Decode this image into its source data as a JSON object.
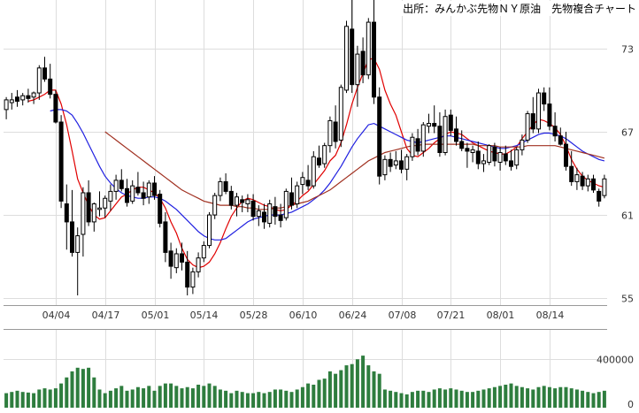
{
  "chart_data": {
    "type": "candlestick",
    "title": "出所：みんかぶ先物ＮＹ原油　先物複合チャート",
    "colors": {
      "candle": "#000000",
      "up_fill": "#ffffff",
      "down_fill": "#000000",
      "ma_short": "#e00000",
      "ma_mid": "#2020e0",
      "ma_long": "#a03020",
      "volume": "#2e7d3e",
      "grid": "#dddddd"
    },
    "price_axis": {
      "ylim": [
        54.5,
        76.5
      ],
      "ticks": [
        55,
        61,
        67,
        73
      ]
    },
    "volume_axis": {
      "ylim": [
        0,
        650000
      ],
      "ticks": [
        0,
        400000
      ]
    },
    "x_tick_labels": [
      "04/04",
      "04/17",
      "05/01",
      "05/14",
      "05/28",
      "06/10",
      "06/24",
      "07/08",
      "07/21",
      "08/01",
      "08/14"
    ],
    "x_tick_index": [
      9,
      18,
      27,
      36,
      45,
      54,
      63,
      72,
      81,
      90,
      99
    ],
    "candles": [
      [
        68.6,
        69.5,
        67.9,
        69.3
      ],
      [
        69.1,
        69.8,
        68.6,
        69.3
      ],
      [
        69.5,
        70.0,
        68.8,
        69.2
      ],
      [
        69.3,
        69.8,
        68.9,
        69.6
      ],
      [
        69.6,
        70.1,
        69.1,
        69.4
      ],
      [
        69.5,
        69.9,
        69.0,
        69.8
      ],
      [
        69.8,
        71.8,
        69.3,
        71.6
      ],
      [
        71.6,
        72.4,
        70.6,
        70.8
      ],
      [
        70.8,
        71.9,
        69.4,
        69.7
      ],
      [
        69.7,
        70.0,
        67.6,
        67.7
      ],
      [
        67.7,
        68.2,
        61.5,
        62.0
      ],
      [
        61.8,
        63.2,
        58.5,
        60.5
      ],
      [
        60.5,
        62.8,
        58.0,
        58.3
      ],
      [
        58.3,
        60.1,
        55.2,
        59.5
      ],
      [
        59.6,
        63.0,
        58.0,
        62.6
      ],
      [
        62.6,
        63.5,
        60.2,
        60.5
      ],
      [
        60.5,
        61.9,
        59.8,
        61.8
      ],
      [
        61.4,
        62.7,
        60.9,
        61.5
      ],
      [
        61.5,
        62.4,
        60.8,
        62.2
      ],
      [
        62.0,
        63.2,
        61.3,
        62.7
      ],
      [
        62.7,
        63.9,
        62.1,
        63.5
      ],
      [
        63.5,
        64.3,
        62.7,
        62.9
      ],
      [
        62.9,
        63.6,
        61.6,
        61.9
      ],
      [
        62.0,
        63.5,
        61.8,
        63.1
      ],
      [
        63.0,
        64.1,
        62.4,
        62.6
      ],
      [
        62.6,
        63.4,
        61.7,
        62.2
      ],
      [
        62.3,
        63.5,
        61.8,
        63.3
      ],
      [
        63.3,
        63.8,
        62.1,
        62.4
      ],
      [
        62.5,
        62.8,
        60.1,
        60.4
      ],
      [
        60.5,
        61.2,
        57.6,
        58.3
      ],
      [
        58.4,
        59.0,
        56.4,
        57.3
      ],
      [
        57.2,
        58.6,
        56.8,
        58.2
      ],
      [
        58.2,
        59.0,
        57.0,
        57.6
      ],
      [
        57.6,
        58.4,
        55.2,
        55.8
      ],
      [
        55.8,
        57.2,
        55.3,
        56.9
      ],
      [
        56.9,
        58.3,
        56.5,
        57.9
      ],
      [
        57.9,
        59.1,
        57.6,
        58.8
      ],
      [
        58.8,
        61.2,
        58.6,
        61.0
      ],
      [
        61.0,
        62.6,
        60.7,
        62.4
      ],
      [
        62.4,
        63.7,
        62.0,
        63.4
      ],
      [
        63.4,
        64.0,
        62.5,
        62.7
      ],
      [
        62.7,
        63.1,
        61.4,
        61.7
      ],
      [
        61.7,
        62.6,
        60.9,
        62.3
      ],
      [
        62.1,
        62.4,
        61.2,
        61.9
      ],
      [
        61.8,
        62.5,
        61.2,
        62.1
      ],
      [
        62.0,
        62.5,
        60.6,
        60.9
      ],
      [
        60.9,
        61.7,
        60.2,
        61.3
      ],
      [
        61.2,
        61.8,
        60.0,
        60.5
      ],
      [
        60.4,
        62.1,
        60.1,
        61.8
      ],
      [
        61.6,
        62.3,
        60.3,
        60.9
      ],
      [
        61.0,
        61.8,
        60.1,
        60.6
      ],
      [
        60.8,
        62.9,
        60.6,
        62.7
      ],
      [
        62.6,
        63.7,
        61.4,
        61.7
      ],
      [
        61.8,
        63.4,
        61.5,
        63.1
      ],
      [
        63.2,
        64.1,
        62.5,
        63.7
      ],
      [
        63.5,
        64.6,
        62.8,
        63.1
      ],
      [
        63.1,
        65.6,
        62.9,
        65.2
      ],
      [
        65.1,
        66.0,
        64.4,
        64.6
      ],
      [
        64.7,
        66.2,
        64.4,
        66.0
      ],
      [
        66.0,
        68.1,
        65.5,
        67.8
      ],
      [
        67.7,
        68.9,
        65.8,
        66.3
      ],
      [
        66.4,
        70.4,
        65.9,
        70.2
      ],
      [
        70.0,
        75.0,
        69.8,
        74.6
      ],
      [
        74.4,
        77.0,
        69.8,
        70.4
      ],
      [
        70.4,
        73.2,
        68.8,
        72.6
      ],
      [
        72.8,
        73.8,
        70.5,
        71.1
      ],
      [
        71.1,
        75.2,
        70.8,
        74.9
      ],
      [
        74.9,
        77.0,
        69.0,
        69.5
      ],
      [
        69.5,
        70.2,
        63.2,
        63.8
      ],
      [
        63.9,
        65.3,
        63.5,
        65.0
      ],
      [
        65.0,
        65.5,
        64.1,
        64.5
      ],
      [
        64.6,
        65.6,
        64.3,
        64.9
      ],
      [
        64.9,
        65.7,
        64.0,
        64.3
      ],
      [
        64.3,
        65.4,
        63.5,
        65.2
      ],
      [
        65.2,
        66.9,
        64.9,
        66.6
      ],
      [
        66.5,
        67.2,
        65.3,
        65.6
      ],
      [
        65.6,
        67.7,
        65.2,
        67.5
      ],
      [
        67.4,
        68.3,
        66.9,
        67.6
      ],
      [
        67.6,
        68.9,
        66.9,
        67.4
      ],
      [
        67.4,
        68.4,
        65.2,
        65.5
      ],
      [
        65.5,
        68.6,
        65.3,
        68.1
      ],
      [
        68.2,
        68.6,
        66.7,
        67.1
      ],
      [
        67.2,
        68.1,
        66.0,
        66.3
      ],
      [
        66.3,
        67.1,
        65.6,
        65.8
      ],
      [
        65.8,
        66.2,
        64.4,
        65.6
      ],
      [
        65.5,
        66.0,
        64.8,
        65.7
      ],
      [
        65.6,
        66.3,
        64.3,
        64.7
      ],
      [
        64.7,
        65.4,
        64.1,
        64.9
      ],
      [
        64.8,
        66.1,
        64.6,
        66.0
      ],
      [
        65.9,
        66.2,
        64.5,
        64.9
      ],
      [
        64.8,
        65.9,
        64.2,
        65.5
      ],
      [
        65.4,
        66.0,
        64.6,
        64.9
      ],
      [
        64.9,
        65.7,
        64.2,
        64.5
      ],
      [
        64.6,
        65.9,
        64.3,
        65.7
      ],
      [
        65.7,
        66.8,
        65.3,
        66.4
      ],
      [
        66.4,
        68.5,
        66.2,
        68.3
      ],
      [
        68.3,
        69.5,
        66.9,
        67.2
      ],
      [
        67.2,
        70.1,
        66.9,
        69.8
      ],
      [
        69.8,
        70.2,
        68.5,
        69.0
      ],
      [
        69.0,
        70.2,
        67.1,
        67.4
      ],
      [
        67.4,
        68.4,
        66.3,
        66.7
      ],
      [
        66.7,
        67.3,
        66.0,
        66.1
      ],
      [
        66.1,
        67.0,
        64.2,
        64.5
      ],
      [
        64.5,
        65.6,
        63.1,
        63.4
      ],
      [
        63.4,
        64.4,
        62.8,
        63.9
      ],
      [
        63.8,
        64.1,
        62.8,
        63.1
      ],
      [
        63.1,
        63.9,
        62.7,
        63.6
      ],
      [
        63.6,
        63.9,
        62.6,
        62.8
      ],
      [
        62.7,
        62.9,
        61.6,
        62.0
      ],
      [
        62.4,
        63.9,
        62.2,
        63.6
      ]
    ],
    "series": [
      {
        "kind": "ma_short",
        "values": [
          null,
          null,
          null,
          null,
          69.2,
          69.3,
          69.5,
          69.7,
          70.0,
          70.0,
          69.0,
          67.5,
          65.6,
          63.6,
          62.6,
          61.7,
          61.0,
          60.7,
          60.8,
          61.3,
          61.8,
          62.3,
          62.5,
          62.8,
          63.0,
          63.0,
          62.8,
          62.6,
          62.2,
          61.5,
          60.5,
          59.7,
          58.6,
          57.8,
          57.4,
          57.2,
          57.3,
          57.6,
          58.2,
          59.0,
          60.0,
          60.9,
          61.5,
          62.0,
          62.2,
          62.1,
          61.9,
          61.7,
          61.6,
          61.4,
          61.3,
          61.4,
          61.7,
          62.0,
          62.4,
          62.7,
          63.2,
          63.7,
          64.2,
          64.9,
          65.3,
          66.2,
          67.5,
          69.0,
          70.2,
          71.2,
          72.2,
          72.3,
          71.5,
          70.0,
          69.0,
          68.2,
          67.0,
          65.8,
          65.3,
          65.2,
          65.5,
          65.8,
          66.2,
          66.5,
          66.8,
          67.0,
          66.9,
          66.8,
          66.5,
          66.2,
          66.0,
          65.8,
          65.6,
          65.5,
          65.4,
          65.4,
          65.6,
          65.9,
          66.5,
          67.0,
          67.5,
          67.9,
          67.8,
          67.6,
          67.3,
          66.8,
          66.0,
          65.0,
          64.3,
          63.8,
          63.5,
          63.3,
          63.1,
          63.0
        ]
      },
      {
        "kind": "ma_mid",
        "values": [
          null,
          null,
          null,
          null,
          null,
          null,
          null,
          null,
          68.5,
          68.6,
          68.6,
          68.5,
          68.2,
          67.6,
          66.9,
          66.1,
          65.3,
          64.5,
          63.8,
          63.3,
          62.9,
          62.6,
          62.4,
          62.3,
          62.2,
          62.2,
          62.3,
          62.3,
          62.2,
          62.0,
          61.7,
          61.4,
          61.0,
          60.6,
          60.2,
          59.8,
          59.5,
          59.3,
          59.2,
          59.2,
          59.3,
          59.6,
          59.9,
          60.2,
          60.5,
          60.7,
          60.8,
          60.9,
          61.0,
          61.0,
          61.0,
          61.1,
          61.2,
          61.4,
          61.6,
          61.8,
          62.1,
          62.4,
          62.8,
          63.3,
          63.9,
          64.5,
          65.2,
          65.9,
          66.5,
          67.0,
          67.5,
          67.6,
          67.4,
          67.2,
          67.0,
          66.8,
          66.6,
          66.4,
          66.3,
          66.2,
          66.3,
          66.4,
          66.5,
          66.6,
          66.7,
          66.7,
          66.6,
          66.5,
          66.4,
          66.3,
          66.2,
          66.1,
          66.0,
          65.9,
          65.8,
          65.8,
          65.9,
          66.0,
          66.2,
          66.4,
          66.6,
          66.8,
          66.9,
          66.9,
          66.8,
          66.7,
          66.5,
          66.2,
          65.9,
          65.6,
          65.4,
          65.2,
          65.0,
          64.9
        ]
      },
      {
        "kind": "ma_long",
        "values": [
          null,
          null,
          null,
          null,
          null,
          null,
          null,
          null,
          null,
          null,
          null,
          null,
          null,
          null,
          null,
          null,
          null,
          null,
          67.0,
          66.7,
          66.4,
          66.1,
          65.8,
          65.5,
          65.2,
          64.9,
          64.6,
          64.3,
          64.0,
          63.7,
          63.4,
          63.1,
          62.8,
          62.6,
          62.4,
          62.2,
          62.0,
          61.9,
          61.8,
          61.7,
          61.7,
          61.7,
          61.6,
          61.6,
          61.5,
          61.5,
          61.4,
          61.4,
          61.4,
          61.5,
          61.5,
          61.6,
          61.7,
          61.8,
          61.9,
          62.0,
          62.2,
          62.4,
          62.6,
          62.8,
          63.1,
          63.4,
          63.7,
          64.0,
          64.3,
          64.6,
          64.9,
          65.1,
          65.3,
          65.5,
          65.6,
          65.7,
          65.8,
          65.9,
          66.0,
          66.0,
          66.1,
          66.1,
          66.1,
          66.1,
          66.1,
          66.1,
          66.1,
          66.1,
          66.1,
          66.1,
          66.0,
          66.0,
          66.0,
          66.0,
          65.9,
          65.9,
          65.9,
          65.9,
          65.9,
          66.0,
          66.0,
          66.0,
          66.0,
          66.0,
          66.0,
          65.9,
          65.8,
          65.7,
          65.6,
          65.5,
          65.4,
          65.3,
          65.2,
          65.1
        ]
      }
    ],
    "volume": [
      120000,
      130000,
      140000,
      130000,
      125000,
      120000,
      150000,
      160000,
      150000,
      160000,
      200000,
      250000,
      300000,
      330000,
      320000,
      330000,
      250000,
      150000,
      120000,
      140000,
      160000,
      180000,
      140000,
      150000,
      170000,
      160000,
      180000,
      140000,
      180000,
      200000,
      200000,
      180000,
      160000,
      170000,
      160000,
      190000,
      180000,
      200000,
      180000,
      150000,
      140000,
      120000,
      140000,
      130000,
      120000,
      120000,
      130000,
      120000,
      130000,
      150000,
      150000,
      140000,
      130000,
      150000,
      170000,
      200000,
      190000,
      230000,
      240000,
      300000,
      280000,
      310000,
      350000,
      360000,
      400000,
      430000,
      350000,
      300000,
      280000,
      150000,
      140000,
      130000,
      120000,
      110000,
      130000,
      140000,
      140000,
      130000,
      150000,
      160000,
      150000,
      160000,
      150000,
      140000,
      130000,
      130000,
      140000,
      150000,
      160000,
      170000,
      180000,
      190000,
      200000,
      180000,
      170000,
      160000,
      150000,
      170000,
      180000,
      170000,
      160000,
      170000,
      170000,
      160000,
      150000,
      140000,
      130000,
      120000,
      130000,
      140000
    ]
  }
}
